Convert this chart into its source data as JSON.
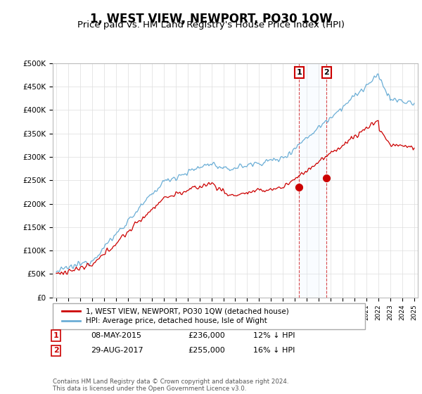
{
  "title": "1, WEST VIEW, NEWPORT, PO30 1QW",
  "subtitle": "Price paid vs. HM Land Registry's House Price Index (HPI)",
  "title_fontsize": 12,
  "subtitle_fontsize": 9.5,
  "ylim": [
    0,
    500000
  ],
  "yticks": [
    0,
    50000,
    100000,
    150000,
    200000,
    250000,
    300000,
    350000,
    400000,
    450000,
    500000
  ],
  "ytick_labels": [
    "£0",
    "£50K",
    "£100K",
    "£150K",
    "£200K",
    "£250K",
    "£300K",
    "£350K",
    "£400K",
    "£450K",
    "£500K"
  ],
  "hpi_color": "#6baed6",
  "price_color": "#cc0000",
  "vline_color": "#cc0000",
  "shade_color": "#ddeeff",
  "legend_red_label": "1, WEST VIEW, NEWPORT, PO30 1QW (detached house)",
  "legend_blue_label": "HPI: Average price, detached house, Isle of Wight",
  "annotation_1_label": "1",
  "annotation_2_label": "2",
  "table_1_date": "08-MAY-2015",
  "table_1_price": "£236,000",
  "table_1_hpi": "12% ↓ HPI",
  "table_2_date": "29-AUG-2017",
  "table_2_price": "£255,000",
  "table_2_hpi": "16% ↓ HPI",
  "footer": "Contains HM Land Registry data © Crown copyright and database right 2024.\nThis data is licensed under the Open Government Licence v3.0.",
  "x_start_year": 1995,
  "x_end_year": 2025,
  "sale_1_year": 2015.36,
  "sale_2_year": 2017.66,
  "sale_1_price": 236000,
  "sale_2_price": 255000,
  "background_color": "#ffffff",
  "grid_color": "#dddddd"
}
